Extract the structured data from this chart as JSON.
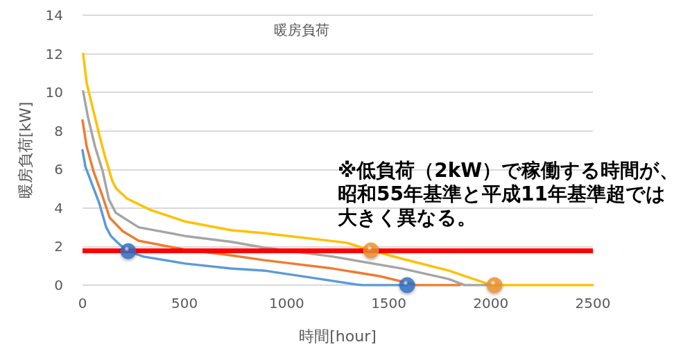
{
  "chart_data": {
    "type": "line",
    "title": "暖房負荷",
    "xlabel": "時間[hour]",
    "ylabel": "暖房負荷[kW]",
    "xlim": [
      0,
      2500
    ],
    "xticks": [
      0,
      500,
      1000,
      1500,
      2000,
      2500
    ],
    "ylim": [
      0,
      14
    ],
    "yticks": [
      0,
      2,
      4,
      6,
      8,
      10,
      12,
      14
    ],
    "grid": "y",
    "marker": "none",
    "line_style": "solid",
    "series": [
      {
        "color": "#ffc000",
        "x": [
          3,
          20,
          54,
          82,
          112,
          146,
          166,
          217,
          333,
          503,
          727,
          887,
          1294,
          1413,
          1566,
          1793,
          1963,
          1997,
          2500
        ],
        "values": [
          12.0,
          10.5,
          9.0,
          7.8,
          6.6,
          5.4,
          5.0,
          4.5,
          3.9,
          3.3,
          2.85,
          2.7,
          2.2,
          1.8,
          1.37,
          0.76,
          0.15,
          0,
          0
        ]
      },
      {
        "color": "#a5a5a5",
        "x": [
          3,
          27,
          61,
          99,
          129,
          163,
          275,
          503,
          727,
          887,
          1226,
          1566,
          1793,
          1872,
          2000
        ],
        "values": [
          10.05,
          8.7,
          7.2,
          5.9,
          4.45,
          3.75,
          3.0,
          2.55,
          2.25,
          1.95,
          1.48,
          0.86,
          0.32,
          0,
          0
        ]
      },
      {
        "color": "#ed7d31",
        "x": [
          0,
          20,
          54,
          95,
          133,
          197,
          275,
          503,
          727,
          887,
          1226,
          1454,
          1624,
          1630,
          1848
        ],
        "values": [
          8.55,
          7.2,
          5.9,
          4.7,
          3.5,
          2.8,
          2.3,
          1.84,
          1.55,
          1.3,
          0.86,
          0.47,
          0.04,
          0,
          0
        ]
      },
      {
        "color": "#5b9bd5",
        "x": [
          0,
          14,
          48,
          82,
          116,
          139,
          183,
          224,
          299,
          503,
          727,
          887,
          1114,
          1338,
          1372,
          1590
        ],
        "values": [
          7.0,
          6.15,
          5.2,
          4.25,
          3.0,
          2.55,
          2.1,
          1.76,
          1.48,
          1.12,
          0.86,
          0.76,
          0.4,
          0.04,
          0,
          0
        ]
      },
      {
        "type": "scatter",
        "marker": "circle",
        "color": "#2f6fc4",
        "x": [
          224,
          1590
        ],
        "values": [
          1.76,
          0
        ]
      },
      {
        "type": "scatter",
        "marker": "circle",
        "color": "#f0912a",
        "x": [
          1413,
          2018
        ],
        "values": [
          1.8,
          0
        ]
      }
    ],
    "ref_lines": [
      {
        "axis": "y",
        "value": 1.8,
        "color": "#ff0000",
        "line_style": "solid"
      }
    ],
    "annotations": [
      "※低負荷（2kW）で稼働する時間が、昭和55年基準と平成11年基準超では大きく異なる。"
    ]
  }
}
